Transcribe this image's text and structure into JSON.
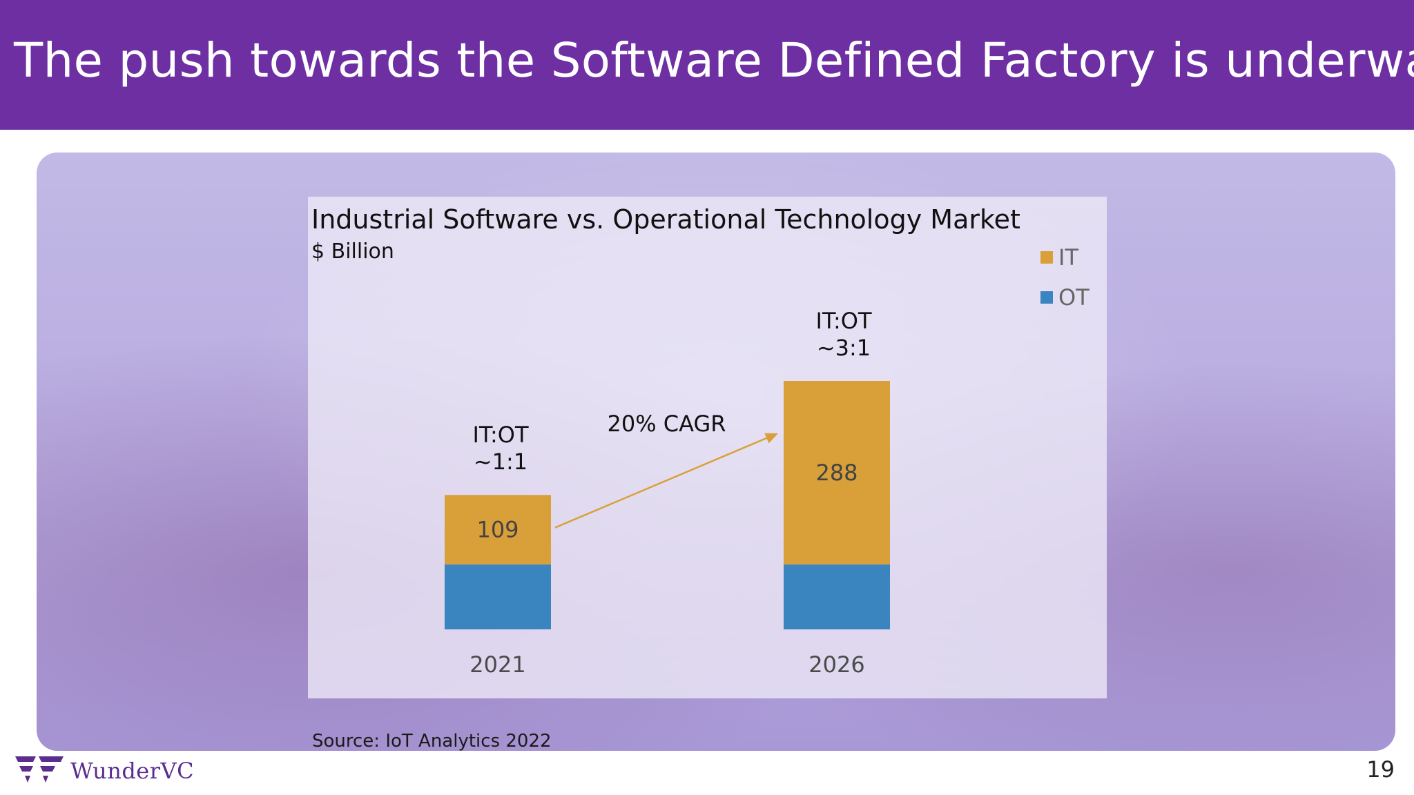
{
  "slide": {
    "title": "The push towards the Software Defined Factory is underway",
    "source": "Source: IoT Analytics 2022",
    "page_number": "19",
    "logo_text": "WunderVC"
  },
  "colors": {
    "header": "#6e2fa3",
    "it": "#d9a03a",
    "ot": "#3a84bf",
    "arrow": "#d9a03a"
  },
  "chart_data": {
    "type": "bar",
    "stacked": true,
    "title": "Industrial Software vs. Operational Technology Market",
    "subtitle": "$ Billion",
    "categories": [
      "2021",
      "2026"
    ],
    "series": [
      {
        "name": "OT",
        "values": [
          102,
          102
        ],
        "color": "#3a84bf"
      },
      {
        "name": "IT",
        "values": [
          109,
          288
        ],
        "color": "#d9a03a"
      }
    ],
    "data_labels": [
      {
        "category": "2021",
        "series": "IT",
        "text": "109"
      },
      {
        "category": "2026",
        "series": "IT",
        "text": "288"
      }
    ],
    "ratio_labels": [
      {
        "category": "2021",
        "line1": "IT:OT",
        "line2": "~1:1"
      },
      {
        "category": "2026",
        "line1": "IT:OT",
        "line2": "~3:1"
      }
    ],
    "annotation": "20% CAGR",
    "legend": [
      "IT",
      "OT"
    ],
    "legend_position": "top-right",
    "ylim": [
      0,
      390
    ],
    "grid": false
  }
}
